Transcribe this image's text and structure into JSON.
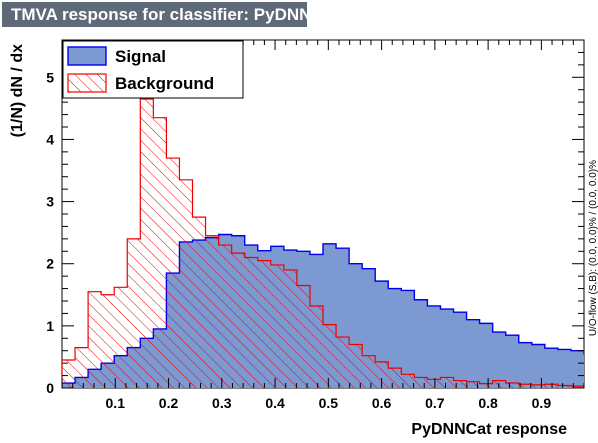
{
  "window": {
    "title": "TMVA response for classifier: PyDNNCat"
  },
  "chart_data": {
    "type": "area",
    "title": "TMVA response for classifier: PyDNNCat",
    "xlabel": "PyDNNCat response",
    "ylabel": "(1/N)  dN / dx",
    "xlim": [
      0.0,
      0.98
    ],
    "ylim": [
      0,
      5.6
    ],
    "x_ticks": [
      "0.1",
      "0.2",
      "0.3",
      "0.4",
      "0.5",
      "0.6",
      "0.7",
      "0.8",
      "0.9"
    ],
    "y_ticks": [
      "0",
      "1",
      "2",
      "3",
      "4",
      "5"
    ],
    "bin_width": 0.0245,
    "bin_edges_start": 0.0,
    "side_note": "U/O-flow (S,B): (0.0, 0.0)% / (0.0, 0.0)%",
    "legend": {
      "position": "top-left"
    },
    "series": [
      {
        "name": "Signal",
        "color_fill": "#7d99d1",
        "color_line": "#0000ee",
        "values": [
          0.08,
          0.17,
          0.3,
          0.4,
          0.52,
          0.65,
          0.8,
          0.95,
          1.85,
          2.35,
          2.38,
          2.42,
          2.47,
          2.45,
          2.3,
          2.21,
          2.28,
          2.22,
          2.2,
          2.15,
          2.32,
          2.25,
          2.0,
          1.92,
          1.72,
          1.6,
          1.57,
          1.42,
          1.32,
          1.27,
          1.22,
          1.1,
          1.04,
          0.9,
          0.85,
          0.73,
          0.7,
          0.64,
          0.62,
          0.6,
          0.55,
          0.47,
          0.37,
          0.3,
          0.12,
          0.07,
          0.03,
          0,
          0,
          0
        ]
      },
      {
        "name": "Background",
        "color_line": "#ee0000",
        "values": [
          0.45,
          0.65,
          1.55,
          1.5,
          1.62,
          2.4,
          4.65,
          4.35,
          3.7,
          3.35,
          2.75,
          2.45,
          2.3,
          2.17,
          2.1,
          2.05,
          1.98,
          1.9,
          1.65,
          1.32,
          1.02,
          0.82,
          0.7,
          0.52,
          0.42,
          0.32,
          0.22,
          0.17,
          0.14,
          0.17,
          0.12,
          0.1,
          0.07,
          0.12,
          0.08,
          0.06,
          0.05,
          0.06,
          0.04,
          0.03,
          0.02,
          0.02,
          0,
          0,
          0,
          0,
          0,
          0,
          0,
          0
        ]
      }
    ]
  }
}
